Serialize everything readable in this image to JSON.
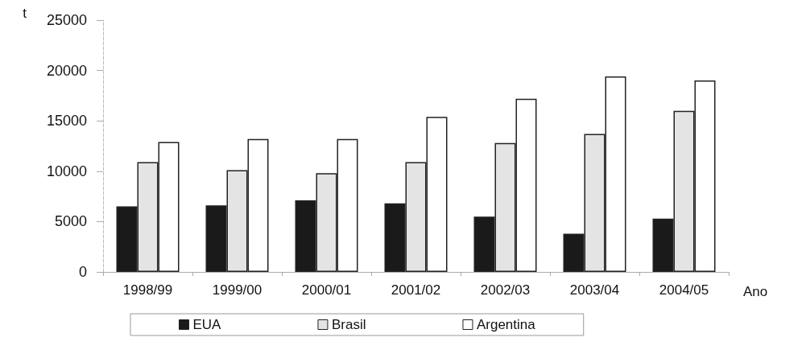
{
  "chart_data": {
    "type": "bar",
    "ylabel": "t",
    "xlabel": "Ano",
    "categories": [
      "1998/99",
      "1999/00",
      "2000/01",
      "2001/02",
      "2002/03",
      "2003/04",
      "2004/05"
    ],
    "series": [
      {
        "name": "EUA",
        "color": "#1a1a1a",
        "values": [
          6500,
          6600,
          7100,
          6800,
          5500,
          3800,
          5300
        ]
      },
      {
        "name": "Brasil",
        "color": "#e4e4e4",
        "values": [
          10900,
          10100,
          9800,
          10900,
          12800,
          13700,
          16000
        ]
      },
      {
        "name": "Argentina",
        "color": "#ffffff",
        "values": [
          12900,
          13200,
          13200,
          15400,
          17200,
          19400,
          19000
        ]
      }
    ],
    "ylim": [
      0,
      25000
    ],
    "yticks": [
      0,
      5000,
      10000,
      15000,
      20000,
      25000
    ],
    "grid": false,
    "legend": "bottom"
  }
}
